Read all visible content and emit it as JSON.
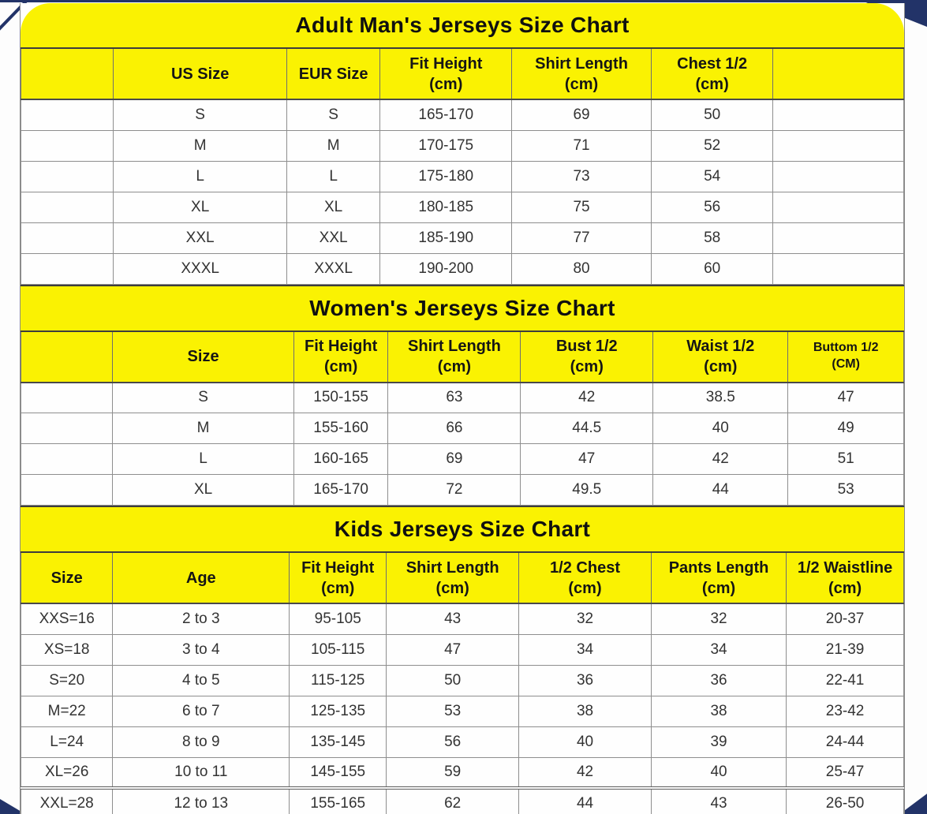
{
  "colors": {
    "sheet_yellow": "#faf202",
    "edge_navy": "#223368",
    "grid_gray": "#8a8a8a"
  },
  "tables": {
    "adult": {
      "title": "Adult Man's Jerseys Size Chart",
      "headers": [
        "",
        "US Size",
        "EUR Size",
        "Fit Height\n(cm)",
        "Shirt Length\n(cm)",
        "Chest 1/2\n(cm)",
        ""
      ],
      "rows": [
        [
          "",
          "S",
          "S",
          "165-170",
          "69",
          "50",
          ""
        ],
        [
          "",
          "M",
          "M",
          "170-175",
          "71",
          "52",
          ""
        ],
        [
          "",
          "L",
          "L",
          "175-180",
          "73",
          "54",
          ""
        ],
        [
          "",
          "XL",
          "XL",
          "180-185",
          "75",
          "56",
          ""
        ],
        [
          "",
          "XXL",
          "XXL",
          "185-190",
          "77",
          "58",
          ""
        ],
        [
          "",
          "XXXL",
          "XXXL",
          "190-200",
          "80",
          "60",
          ""
        ]
      ]
    },
    "women": {
      "title": "Women's Jerseys Size Chart",
      "headers": [
        "",
        "Size",
        "Fit Height\n(cm)",
        "Shirt Length\n(cm)",
        "Bust 1/2\n(cm)",
        "Waist 1/2\n(cm)",
        "Buttom 1/2\n(CM)"
      ],
      "rows": [
        [
          "",
          "S",
          "150-155",
          "63",
          "42",
          "38.5",
          "47"
        ],
        [
          "",
          "M",
          "155-160",
          "66",
          "44.5",
          "40",
          "49"
        ],
        [
          "",
          "L",
          "160-165",
          "69",
          "47",
          "42",
          "51"
        ],
        [
          "",
          "XL",
          "165-170",
          "72",
          "49.5",
          "44",
          "53"
        ]
      ]
    },
    "kids": {
      "title": "Kids Jerseys Size Chart",
      "headers": [
        "Size",
        "Age",
        "Fit Height\n(cm)",
        "Shirt Length\n(cm)",
        "1/2 Chest\n(cm)",
        "Pants Length\n(cm)",
        "1/2 Waistline\n(cm)"
      ],
      "rows": [
        [
          "XXS=16",
          "2 to 3",
          "95-105",
          "43",
          "32",
          "32",
          "20-37"
        ],
        [
          "XS=18",
          "3 to 4",
          "105-115",
          "47",
          "34",
          "34",
          "21-39"
        ],
        [
          "S=20",
          "4 to 5",
          "115-125",
          "50",
          "36",
          "36",
          "22-41"
        ],
        [
          "M=22",
          "6 to 7",
          "125-135",
          "53",
          "38",
          "38",
          "23-42"
        ],
        [
          "L=24",
          "8 to 9",
          "135-145",
          "56",
          "40",
          "39",
          "24-44"
        ],
        [
          "XL=26",
          "10 to 11",
          "145-155",
          "59",
          "42",
          "40",
          "25-47"
        ],
        [
          "XXL=28",
          "12 to 13",
          "155-165",
          "62",
          "44",
          "43",
          "26-50"
        ]
      ]
    }
  }
}
